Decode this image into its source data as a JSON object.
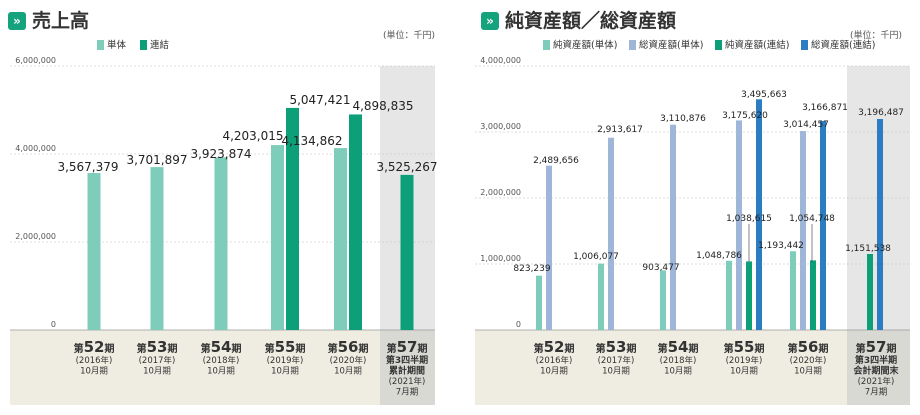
{
  "colors": {
    "single": "#7ecdbb",
    "consolidated": "#0d9f78",
    "net_single": "#7ecdbb",
    "total_single": "#9fb6d9",
    "net_consol": "#0d9f78",
    "total_consol": "#2b7cc1",
    "accent": "#15a37e"
  },
  "icon": "double-chevron-icon",
  "chart_data": [
    {
      "type": "bar",
      "title": "売上高",
      "unit_label": "(単位：千円)",
      "ylim": [
        0,
        6000000
      ],
      "yticks": [
        "0",
        "2,000,000",
        "4,000,000",
        "6,000,000"
      ],
      "ytick_values": [
        0,
        2000000,
        4000000,
        6000000
      ],
      "legend": [
        "単体",
        "連結"
      ],
      "categories": [
        {
          "prefix": "第",
          "num": "52",
          "suffix": "期",
          "lines": [
            "(2016年)",
            "10月期"
          ]
        },
        {
          "prefix": "第",
          "num": "53",
          "suffix": "期",
          "lines": [
            "(2017年)",
            "10月期"
          ]
        },
        {
          "prefix": "第",
          "num": "54",
          "suffix": "期",
          "lines": [
            "(2018年)",
            "10月期"
          ]
        },
        {
          "prefix": "第",
          "num": "55",
          "suffix": "期",
          "lines": [
            "(2019年)",
            "10月期"
          ]
        },
        {
          "prefix": "第",
          "num": "56",
          "suffix": "期",
          "lines": [
            "(2020年)",
            "10月期"
          ]
        },
        {
          "prefix": "第",
          "num": "57",
          "suffix": "期",
          "lines": [
            "第3四半期",
            "累計期間",
            "(2021年)",
            "7月期"
          ]
        }
      ],
      "series": [
        {
          "name": "単体",
          "values": [
            3567379,
            3701897,
            3923874,
            4203015,
            4134862,
            null
          ],
          "labels": [
            "3,567,379",
            "3,701,897",
            "3,923,874",
            "4,203,015",
            "4,134,862",
            null
          ]
        },
        {
          "name": "連結",
          "values": [
            null,
            null,
            null,
            5047421,
            4898835,
            3525267
          ],
          "labels": [
            null,
            null,
            null,
            "5,047,421",
            "4,898,835",
            "3,525,267"
          ]
        }
      ]
    },
    {
      "type": "bar",
      "title": "純資産額／総資産額",
      "unit_label": "(単位：千円)",
      "ylim": [
        0,
        4000000
      ],
      "yticks": [
        "0",
        "1,000,000",
        "2,000,000",
        "3,000,000",
        "4,000,000"
      ],
      "ytick_values": [
        0,
        1000000,
        2000000,
        3000000,
        4000000
      ],
      "legend": [
        "純資産額(単体)",
        "総資産額(単体)",
        "純資産額(連結)",
        "総資産額(連結)"
      ],
      "categories": [
        {
          "prefix": "第",
          "num": "52",
          "suffix": "期",
          "lines": [
            "(2016年)",
            "10月期"
          ]
        },
        {
          "prefix": "第",
          "num": "53",
          "suffix": "期",
          "lines": [
            "(2017年)",
            "10月期"
          ]
        },
        {
          "prefix": "第",
          "num": "54",
          "suffix": "期",
          "lines": [
            "(2018年)",
            "10月期"
          ]
        },
        {
          "prefix": "第",
          "num": "55",
          "suffix": "期",
          "lines": [
            "(2019年)",
            "10月期"
          ]
        },
        {
          "prefix": "第",
          "num": "56",
          "suffix": "期",
          "lines": [
            "(2020年)",
            "10月期"
          ]
        },
        {
          "prefix": "第",
          "num": "57",
          "suffix": "期",
          "lines": [
            "第3四半期",
            "会計期間末",
            "(2021年)",
            "7月期"
          ]
        }
      ],
      "series": [
        {
          "name": "純資産額(単体)",
          "values": [
            823239,
            1006077,
            903477,
            1048786,
            1193442,
            null
          ],
          "labels": [
            "823,239",
            "1,006,077",
            "903,477",
            "1,048,786",
            "1,193,442",
            null
          ]
        },
        {
          "name": "総資産額(単体)",
          "values": [
            2489656,
            2913617,
            3110876,
            3175620,
            3014457,
            null
          ],
          "labels": [
            "2,489,656",
            "2,913,617",
            "3,110,876",
            "3,175,620",
            "3,014,457",
            null
          ]
        },
        {
          "name": "純資産額(連結)",
          "values": [
            null,
            null,
            null,
            1038615,
            1054748,
            1151538
          ],
          "labels": [
            null,
            null,
            null,
            "1,038,615",
            "1,054,748",
            "1,151,538"
          ]
        },
        {
          "name": "総資産額(連結)",
          "values": [
            null,
            null,
            null,
            3495663,
            3166871,
            3196487
          ],
          "labels": [
            null,
            null,
            null,
            "3,495,663",
            "3,166,871",
            "3,196,487"
          ]
        }
      ]
    }
  ]
}
